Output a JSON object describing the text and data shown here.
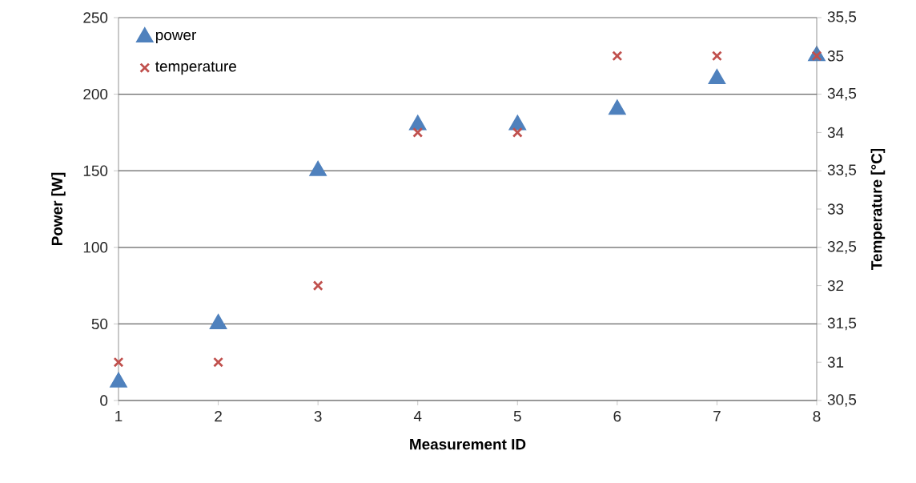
{
  "chart_data": {
    "type": "scatter",
    "xlabel": "Measurement ID",
    "ylabel": "Power [W]",
    "y2label": "Temperature [°C]",
    "x": [
      1,
      2,
      3,
      4,
      5,
      6,
      7,
      8
    ],
    "series": [
      {
        "name": "power",
        "color": "#4f81bd",
        "marker": "triangle",
        "values": [
          12,
          50,
          150,
          180,
          180,
          190,
          210,
          225
        ]
      },
      {
        "name": "temperature",
        "color": "#c0504d",
        "marker": "cross",
        "axis": "y2",
        "values": [
          31,
          31,
          32,
          34,
          34,
          35,
          35,
          35
        ]
      }
    ],
    "xlim": [
      1,
      8
    ],
    "xticks": [
      1,
      2,
      3,
      4,
      5,
      6,
      7,
      8
    ],
    "ylim": [
      0,
      250
    ],
    "yticks": [
      0,
      50,
      100,
      150,
      200,
      250
    ],
    "y2lim": [
      30.5,
      35.5
    ],
    "y2ticks": [
      {
        "value": 30.5,
        "label": "30,5"
      },
      {
        "value": 31,
        "label": "31"
      },
      {
        "value": 31.5,
        "label": "31,5"
      },
      {
        "value": 32,
        "label": "32"
      },
      {
        "value": 32.5,
        "label": "32,5"
      },
      {
        "value": 33,
        "label": "33"
      },
      {
        "value": 33.5,
        "label": "33,5"
      },
      {
        "value": 34,
        "label": "34"
      },
      {
        "value": 34.5,
        "label": "34,5"
      },
      {
        "value": 35,
        "label": "35"
      },
      {
        "value": 35.5,
        "label": "35,5"
      }
    ],
    "grid": "y",
    "legend": "top left"
  }
}
